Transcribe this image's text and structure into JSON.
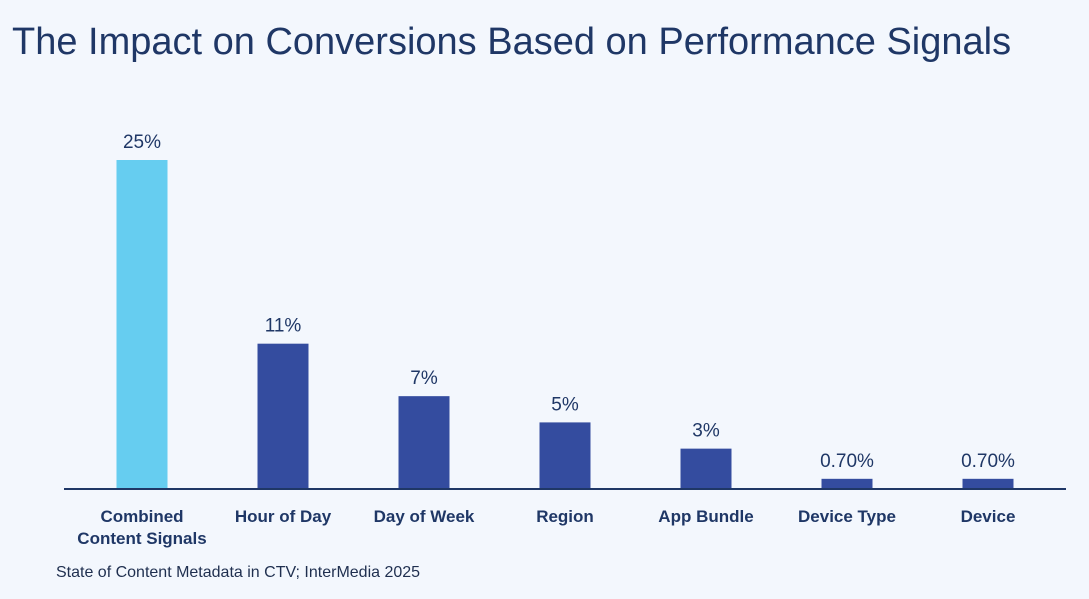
{
  "chart_data": {
    "type": "bar",
    "title": "The Impact on Conversions Based on Performance Signals",
    "categories": [
      [
        "Combined",
        "Content Signals"
      ],
      [
        "Hour of Day"
      ],
      [
        "Day of Week"
      ],
      [
        "Region"
      ],
      [
        "App Bundle"
      ],
      [
        "Device Type"
      ],
      [
        "Device"
      ]
    ],
    "values": [
      25,
      11,
      7,
      5,
      3,
      0.7,
      0.7
    ],
    "value_labels": [
      "25%",
      "11%",
      "7%",
      "5%",
      "3%",
      "0.70%",
      "0.70%"
    ],
    "unit": "%",
    "ylim": [
      0,
      25
    ],
    "grid": false,
    "legend": "none",
    "colors": {
      "highlight": "#66cdf0",
      "default": "#344c9f",
      "axis": "#1f3766",
      "text": "#1f3766"
    },
    "highlight_index": 0
  },
  "source": "State of Content Metadata in CTV; InterMedia 2025"
}
